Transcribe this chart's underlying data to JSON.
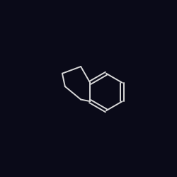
{
  "bg_color": "#0a0a18",
  "bond_color": "#d8d8d8",
  "o_color": "#ff2020",
  "n_color": "#3030ff",
  "ho_color": "#ff2020",
  "figsize": [
    2.5,
    2.5
  ],
  "dpi": 100,
  "lw": 1.4,
  "font_size": 8.5
}
